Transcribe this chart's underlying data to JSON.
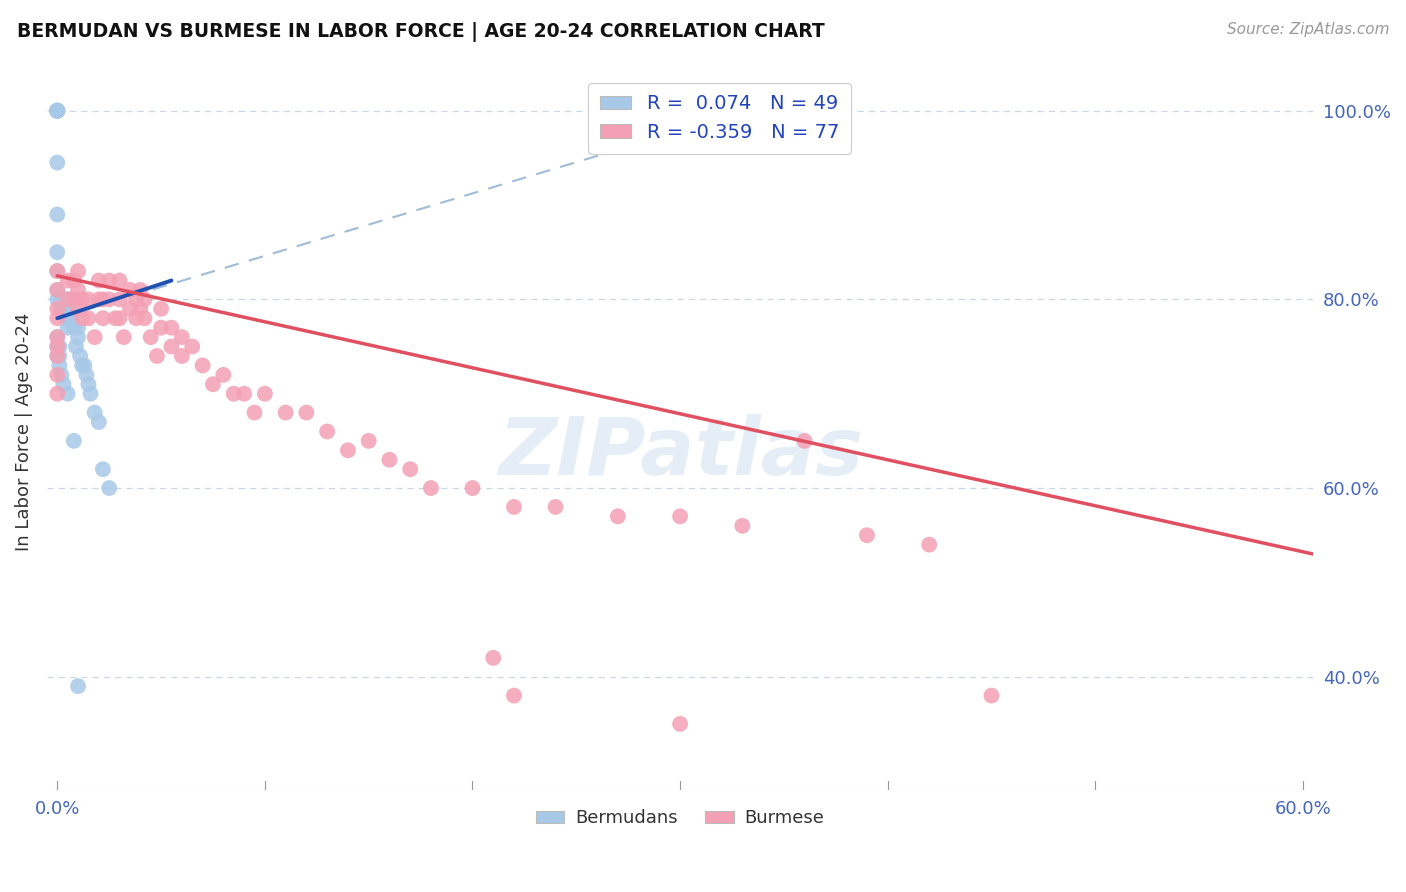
{
  "title": "BERMUDAN VS BURMESE IN LABOR FORCE | AGE 20-24 CORRELATION CHART",
  "source": "Source: ZipAtlas.com",
  "ylabel": "In Labor Force | Age 20-24",
  "xlim": [
    -0.005,
    0.605
  ],
  "ylim": [
    0.28,
    1.04
  ],
  "x_tick_positions": [
    0.0,
    0.1,
    0.2,
    0.3,
    0.4,
    0.5,
    0.6
  ],
  "x_tick_labels": [
    "0.0%",
    "",
    "",
    "",
    "",
    "",
    "60.0%"
  ],
  "y_tick_positions": [
    0.4,
    0.6,
    0.8,
    1.0
  ],
  "y_tick_labels": [
    "40.0%",
    "60.0%",
    "80.0%",
    "100.0%"
  ],
  "bermudan_R": 0.074,
  "bermudan_N": 49,
  "burmese_R": -0.359,
  "burmese_N": 77,
  "bermudan_color": "#a8c8e8",
  "burmese_color": "#f4a0b4",
  "bermudan_line_color": "#2050b0",
  "burmese_line_color": "#e05060",
  "dashed_line_color": "#a0bcd8",
  "grid_color": "#c8d8e8",
  "watermark": "ZIPatlas",
  "bermudan_x": [
    0.0,
    0.0,
    0.0,
    0.0,
    0.0,
    0.0,
    0.0,
    0.0,
    0.0,
    0.0,
    0.0,
    0.0,
    0.002,
    0.002,
    0.003,
    0.003,
    0.004,
    0.004,
    0.005,
    0.005,
    0.005,
    0.006,
    0.006,
    0.007,
    0.008,
    0.009,
    0.01,
    0.01,
    0.011,
    0.012,
    0.013,
    0.014,
    0.015,
    0.016,
    0.018,
    0.02,
    0.0,
    0.0,
    0.0,
    0.001,
    0.001,
    0.001,
    0.002,
    0.003,
    0.005,
    0.008,
    0.022,
    0.025,
    0.01
  ],
  "bermudan_y": [
    1.0,
    1.0,
    1.0,
    1.0,
    1.0,
    1.0,
    0.945,
    0.89,
    0.85,
    0.83,
    0.81,
    0.8,
    0.8,
    0.79,
    0.8,
    0.79,
    0.8,
    0.79,
    0.78,
    0.78,
    0.77,
    0.8,
    0.79,
    0.78,
    0.77,
    0.75,
    0.77,
    0.76,
    0.74,
    0.73,
    0.73,
    0.72,
    0.71,
    0.7,
    0.68,
    0.67,
    0.76,
    0.75,
    0.74,
    0.75,
    0.74,
    0.73,
    0.72,
    0.71,
    0.7,
    0.65,
    0.62,
    0.6,
    0.39
  ],
  "burmese_x": [
    0.0,
    0.0,
    0.0,
    0.0,
    0.0,
    0.0,
    0.0,
    0.0,
    0.0,
    0.005,
    0.005,
    0.008,
    0.008,
    0.01,
    0.01,
    0.01,
    0.012,
    0.012,
    0.015,
    0.015,
    0.018,
    0.02,
    0.02,
    0.022,
    0.022,
    0.025,
    0.025,
    0.028,
    0.03,
    0.03,
    0.03,
    0.032,
    0.035,
    0.035,
    0.038,
    0.038,
    0.04,
    0.04,
    0.042,
    0.042,
    0.045,
    0.048,
    0.05,
    0.05,
    0.055,
    0.055,
    0.06,
    0.06,
    0.065,
    0.07,
    0.075,
    0.08,
    0.085,
    0.09,
    0.095,
    0.1,
    0.11,
    0.12,
    0.13,
    0.14,
    0.15,
    0.16,
    0.17,
    0.18,
    0.2,
    0.22,
    0.24,
    0.27,
    0.3,
    0.33,
    0.36,
    0.39,
    0.42,
    0.21,
    0.22,
    0.45,
    0.3
  ],
  "burmese_y": [
    0.83,
    0.81,
    0.79,
    0.78,
    0.76,
    0.75,
    0.74,
    0.72,
    0.7,
    0.82,
    0.8,
    0.82,
    0.8,
    0.83,
    0.81,
    0.79,
    0.8,
    0.78,
    0.8,
    0.78,
    0.76,
    0.82,
    0.8,
    0.8,
    0.78,
    0.82,
    0.8,
    0.78,
    0.82,
    0.8,
    0.78,
    0.76,
    0.81,
    0.79,
    0.8,
    0.78,
    0.81,
    0.79,
    0.8,
    0.78,
    0.76,
    0.74,
    0.79,
    0.77,
    0.77,
    0.75,
    0.76,
    0.74,
    0.75,
    0.73,
    0.71,
    0.72,
    0.7,
    0.7,
    0.68,
    0.7,
    0.68,
    0.68,
    0.66,
    0.64,
    0.65,
    0.63,
    0.62,
    0.6,
    0.6,
    0.58,
    0.58,
    0.57,
    0.57,
    0.56,
    0.65,
    0.55,
    0.54,
    0.42,
    0.38,
    0.38,
    0.35
  ],
  "bermudan_line_x": [
    0.0,
    0.055
  ],
  "bermudan_line_y": [
    0.78,
    0.82
  ],
  "dashed_line_x": [
    0.0,
    0.34
  ],
  "dashed_line_y": [
    0.78,
    1.005
  ],
  "burmese_line_x": [
    0.0,
    0.605
  ],
  "burmese_line_y": [
    0.825,
    0.53
  ]
}
